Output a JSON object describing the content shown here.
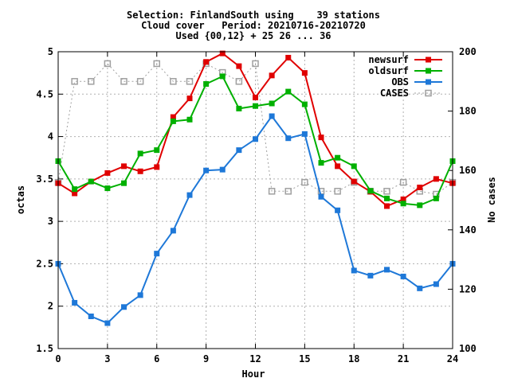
{
  "chart_data": {
    "type": "line",
    "title": [
      "Selection: FinlandSouth using    39 stations",
      "Cloud cover   Period: 20210716-20210720",
      "Used {00,12} + 25 26 ... 36"
    ],
    "xlabel": "Hour",
    "ylabel": "octas",
    "y2label": "No cases",
    "xlim": [
      0,
      24
    ],
    "ylim": [
      1.5,
      5
    ],
    "y2lim": [
      100,
      200
    ],
    "xticks": [
      0,
      3,
      6,
      9,
      12,
      15,
      18,
      21,
      24
    ],
    "yticks": [
      1.5,
      2,
      2.5,
      3,
      3.5,
      4,
      4.5,
      5
    ],
    "y2ticks": [
      100,
      120,
      140,
      160,
      180,
      200
    ],
    "grid": true,
    "legend_position": "top-right",
    "x": [
      0,
      1,
      2,
      3,
      4,
      5,
      6,
      7,
      8,
      9,
      10,
      11,
      12,
      13,
      14,
      15,
      16,
      17,
      18,
      19,
      20,
      21,
      22,
      23,
      24
    ],
    "series": [
      {
        "name": "newsurf",
        "axis": "left",
        "color": "#e00000",
        "marker": "filled-square",
        "values": [
          3.45,
          3.33,
          3.47,
          3.57,
          3.65,
          3.59,
          3.64,
          4.23,
          4.45,
          4.88,
          4.98,
          4.83,
          4.46,
          4.72,
          4.93,
          4.75,
          3.99,
          3.65,
          3.47,
          3.35,
          3.18,
          3.26,
          3.4,
          3.5,
          3.45
        ]
      },
      {
        "name": "oldsurf",
        "axis": "left",
        "color": "#00b000",
        "marker": "filled-square",
        "values": [
          3.71,
          3.38,
          3.47,
          3.39,
          3.45,
          3.8,
          3.84,
          4.18,
          4.2,
          4.62,
          4.71,
          4.33,
          4.36,
          4.39,
          4.53,
          4.38,
          3.69,
          3.75,
          3.65,
          3.36,
          3.27,
          3.21,
          3.19,
          3.27,
          3.71
        ]
      },
      {
        "name": "OBS",
        "axis": "left",
        "color": "#1e78d8",
        "marker": "filled-square",
        "values": [
          2.5,
          2.04,
          1.88,
          1.8,
          1.99,
          2.13,
          2.62,
          2.89,
          3.31,
          3.6,
          3.61,
          3.84,
          3.97,
          4.24,
          3.98,
          4.03,
          3.29,
          3.13,
          2.42,
          2.36,
          2.43,
          2.35,
          2.21,
          2.26,
          2.5
        ]
      },
      {
        "name": "CASES",
        "axis": "right",
        "color": "#a0a0a0",
        "marker": "open-square",
        "dashed": true,
        "values": [
          156,
          190,
          190,
          196,
          190,
          190,
          196,
          190,
          190,
          196,
          193,
          190,
          196,
          153,
          153,
          156,
          153,
          153,
          156,
          153,
          153,
          156,
          153,
          152,
          156
        ]
      }
    ]
  }
}
